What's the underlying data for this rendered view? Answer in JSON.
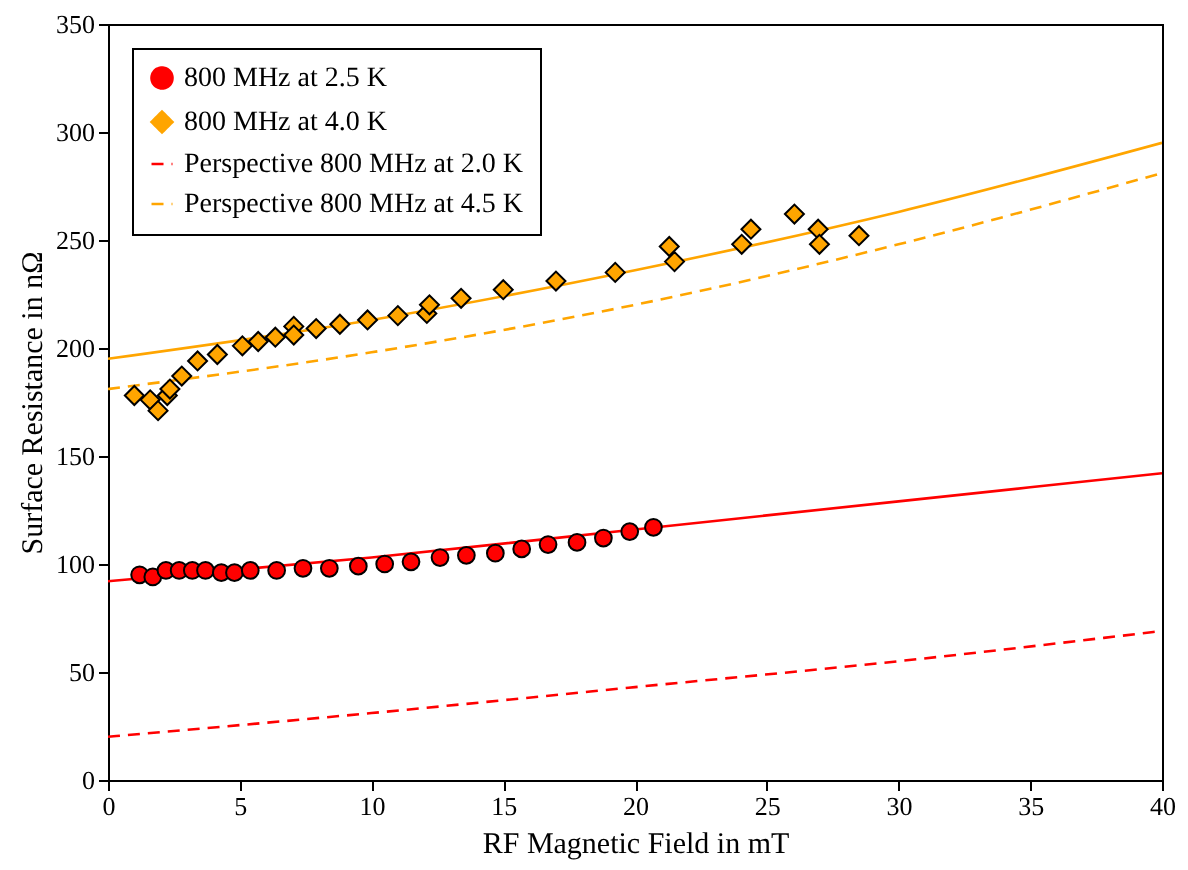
{
  "chart_data": {
    "type": "scatter",
    "xlabel": "RF Magnetic Field in mT",
    "ylabel": "Surface Resistance in nΩ",
    "xlim": [
      0,
      40
    ],
    "xticks": [
      0,
      5,
      10,
      15,
      20,
      25,
      30,
      35,
      40
    ],
    "ylim": [
      0,
      350
    ],
    "yticks": [
      0,
      50,
      100,
      150,
      200,
      250,
      300,
      350
    ],
    "grid": false,
    "legend": "top left",
    "series": [
      {
        "name": "800 MHz at 2.5 K",
        "marker": "circle",
        "color": "#ff0000",
        "x": [
          1.2,
          1.7,
          2.2,
          2.7,
          3.2,
          3.7,
          4.3,
          4.8,
          5.4,
          6.4,
          7.4,
          8.4,
          9.5,
          10.5,
          11.5,
          12.6,
          13.6,
          14.7,
          15.7,
          16.7,
          17.8,
          18.8,
          19.8,
          20.7
        ],
        "values": [
          95,
          94,
          97,
          97,
          97,
          97,
          96,
          96,
          97,
          97,
          98,
          98,
          99,
          100,
          101,
          103,
          104,
          105,
          107,
          109,
          110,
          112,
          115,
          117
        ]
      },
      {
        "name": "800 MHz at 4.0 K",
        "marker": "diamond",
        "color": "#ffa500",
        "x": [
          1.0,
          1.6,
          1.9,
          2.25,
          2.35,
          2.8,
          3.4,
          4.15,
          5.1,
          5.7,
          6.35,
          7.05,
          7.05,
          7.9,
          8.8,
          9.85,
          11.0,
          12.1,
          12.2,
          13.4,
          15.0,
          17.0,
          19.25,
          21.3,
          21.5,
          24.05,
          24.4,
          26.05,
          26.95,
          27.0,
          28.5
        ],
        "values": [
          178,
          176,
          171,
          178,
          181,
          187,
          194,
          197,
          201,
          203,
          205,
          210,
          206,
          209,
          211,
          213,
          215,
          216,
          220,
          223,
          227,
          231,
          235,
          247,
          240,
          248,
          255,
          262,
          255,
          248,
          252
        ]
      },
      {
        "name": "Perspective 800 MHz at 2.0 K",
        "type": "line",
        "line_style": "dashed",
        "color": "#ff0000",
        "x": [
          0,
          10,
          20,
          30,
          40
        ],
        "values": [
          20,
          31,
          43,
          55,
          69
        ]
      },
      {
        "name": "Perspective 800 MHz at 4.5 K",
        "type": "line",
        "line_style": "dashed",
        "color": "#ffa500",
        "x": [
          0,
          10,
          20,
          30,
          40
        ],
        "values": [
          181,
          198,
          220,
          248,
          281
        ]
      },
      {
        "type": "line",
        "line_style": "solid",
        "color": "#ff0000",
        "x": [
          0,
          10,
          20,
          30,
          40
        ],
        "values": [
          92,
          103,
          116,
          129,
          142
        ]
      },
      {
        "type": "line",
        "line_style": "solid",
        "color": "#ffa500",
        "x": [
          0,
          10,
          20,
          30,
          40
        ],
        "values": [
          195,
          213,
          236,
          263,
          295
        ]
      }
    ]
  }
}
